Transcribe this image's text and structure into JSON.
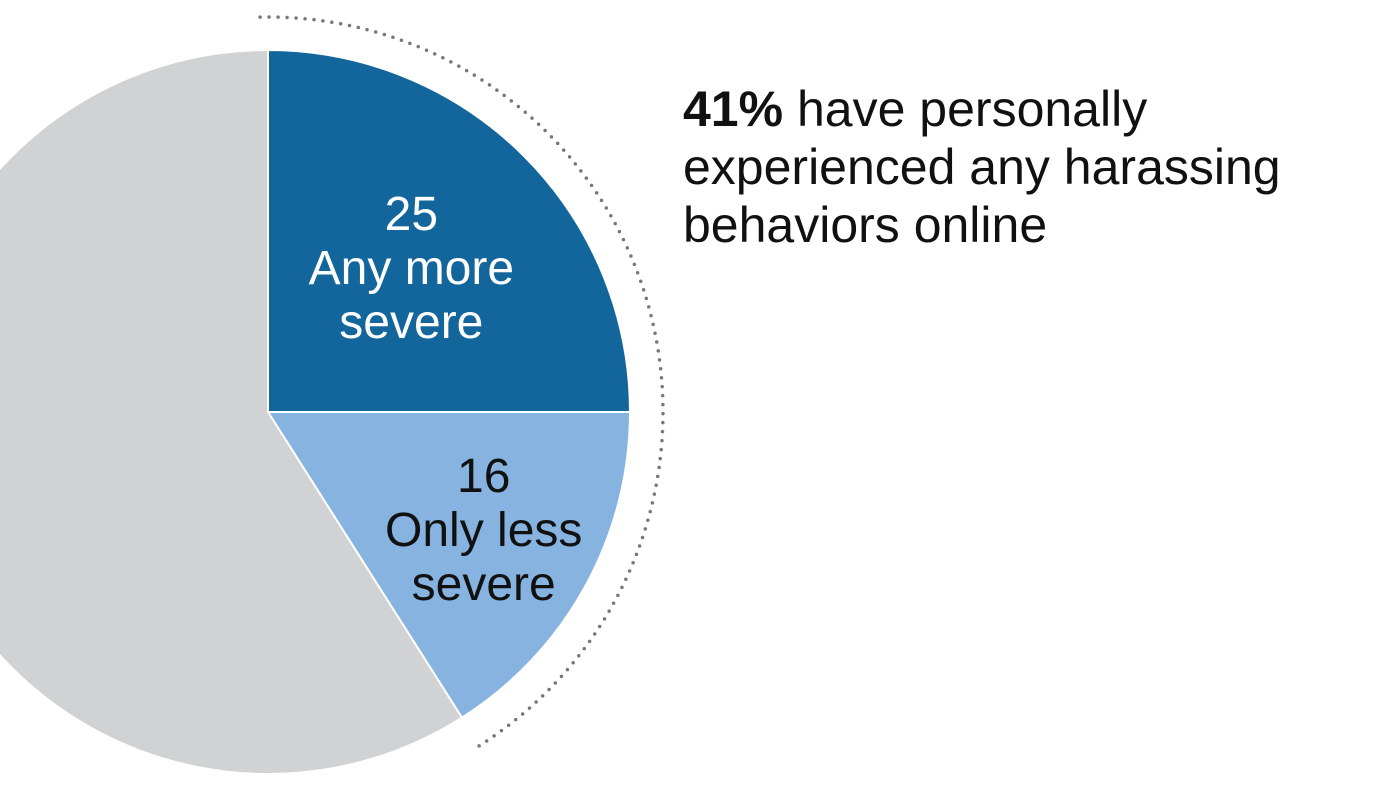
{
  "chart_data": {
    "type": "pie",
    "categories": [
      "Any more severe",
      "Only less severe",
      null
    ],
    "values": [
      25,
      16,
      59
    ],
    "colors": [
      "#13669b",
      "#86b3e0",
      "#d1d2d4"
    ],
    "label_colors": [
      "#ffffff",
      "#111111"
    ],
    "annotation": {
      "bold": "41%",
      "text": "have personally experienced any harassing behaviors online"
    }
  }
}
